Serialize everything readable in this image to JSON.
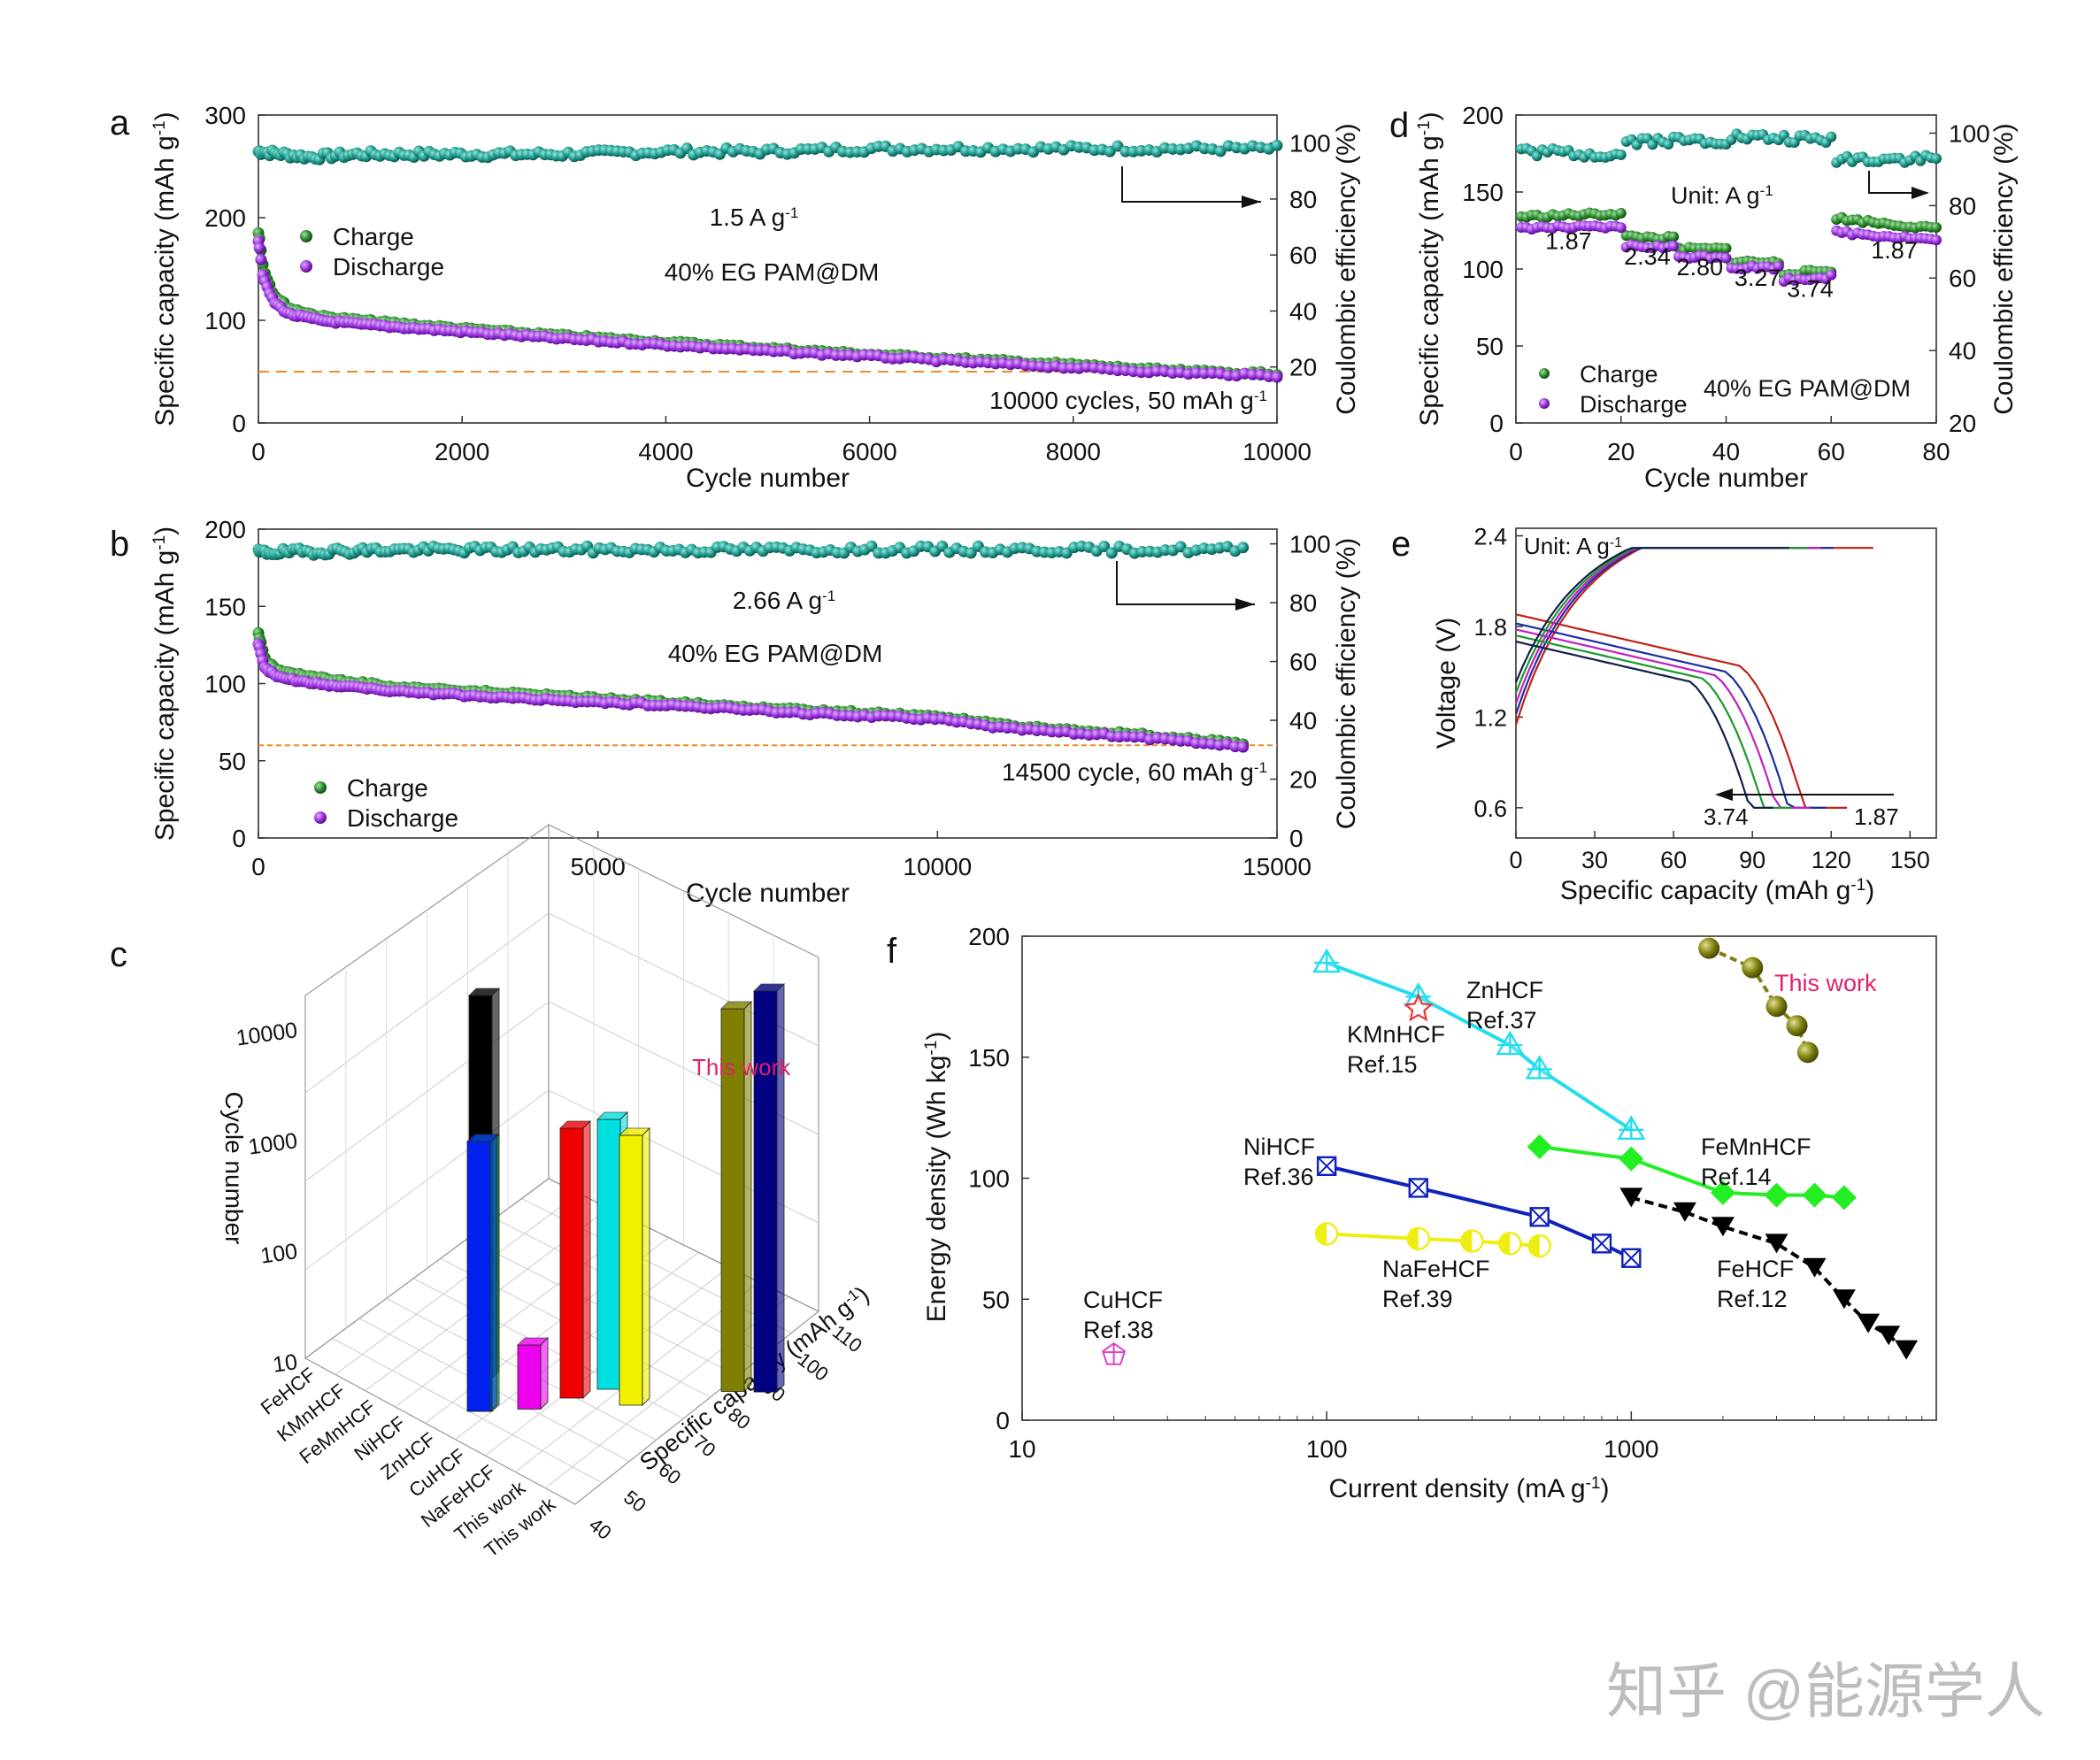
{
  "panel_letters": [
    "a",
    "b",
    "c",
    "d",
    "e",
    "f"
  ],
  "watermark": "知乎 @能源学人",
  "chart_data": [
    {
      "panel": "a",
      "type": "scatter",
      "xlabel": "Cycle number",
      "ylabel": "Specific capacity (mAh g-1)",
      "y2label": "Coulombic efficiency (%)",
      "xlim": [
        0,
        10000
      ],
      "ylim": [
        0,
        300
      ],
      "y2lim": [
        0,
        110
      ],
      "xticks": [
        0,
        2000,
        4000,
        6000,
        8000,
        10000
      ],
      "yticks": [
        0,
        100,
        200,
        300
      ],
      "y2ticks": [
        20,
        40,
        60,
        80,
        100
      ],
      "annotations": [
        "1.5 A g-1",
        "40% EG PAM@DM",
        "10000 cycles, 50 mAh g-1"
      ],
      "reference_line": 50,
      "colors": {
        "charge": "#2e8b2e",
        "discharge": "#9b30e0",
        "ce": "#1f9a8c",
        "refline": "#f08a24"
      },
      "series": [
        {
          "name": "Charge",
          "x": [
            1,
            50,
            150,
            300,
            600,
            1000,
            2000,
            3000,
            4000,
            5000,
            6000,
            7000,
            8000,
            9000,
            10000
          ],
          "values": [
            186,
            150,
            125,
            112,
            104,
            100,
            92,
            85,
            79,
            73,
            67,
            62,
            57,
            51,
            48
          ]
        },
        {
          "name": "Discharge",
          "x": [
            1,
            50,
            150,
            300,
            600,
            1000,
            2000,
            3000,
            4000,
            5000,
            6000,
            7000,
            8000,
            9000,
            10000
          ],
          "values": [
            178,
            140,
            118,
            106,
            100,
            96,
            89,
            82,
            76,
            70,
            65,
            59,
            54,
            49,
            46
          ]
        },
        {
          "axis": "y2",
          "x": [
            1,
            500,
            1000,
            2000,
            3000,
            4000,
            5000,
            6000,
            7000,
            8000,
            9000,
            10000
          ],
          "values": [
            97,
            95,
            96,
            96,
            96,
            97,
            97,
            98,
            98,
            98,
            98,
            98
          ]
        }
      ]
    },
    {
      "panel": "b",
      "type": "scatter",
      "xlabel": "Cycle number",
      "ylabel": "Specific capacity (mAh g-1)",
      "y2label": "Coulombic efficiency (%)",
      "xlim": [
        0,
        15000
      ],
      "ylim": [
        0,
        200
      ],
      "y2lim": [
        0,
        105
      ],
      "xticks": [
        0,
        5000,
        10000,
        15000
      ],
      "yticks": [
        0,
        50,
        100,
        150,
        200
      ],
      "y2ticks": [
        0,
        20,
        40,
        60,
        80,
        100
      ],
      "annotations": [
        "2.66 A g-1",
        "40% EG PAM@DM",
        "14500 cycle, 60 mAh g-1"
      ],
      "reference_line": 60,
      "colors": {
        "charge": "#2e8b2e",
        "discharge": "#9b30e0",
        "ce": "#1f9a8c",
        "refline": "#f08a24"
      },
      "series": [
        {
          "name": "Charge",
          "x": [
            1,
            100,
            300,
            1000,
            2000,
            4000,
            6000,
            8000,
            10000,
            11000,
            12000,
            13000,
            14500
          ],
          "values": [
            132,
            115,
            108,
            103,
            98,
            93,
            88,
            83,
            79,
            73,
            70,
            67,
            61
          ]
        },
        {
          "name": "Discharge",
          "x": [
            1,
            100,
            300,
            1000,
            2000,
            4000,
            6000,
            8000,
            10000,
            11000,
            12000,
            13000,
            14500
          ],
          "values": [
            125,
            110,
            104,
            99,
            95,
            90,
            86,
            81,
            77,
            71,
            68,
            65,
            59
          ]
        },
        {
          "axis": "y2",
          "x": [
            1,
            2000,
            4000,
            6000,
            8000,
            10000,
            12000,
            14500
          ],
          "values": [
            97,
            98,
            98,
            98,
            98,
            98,
            98,
            98
          ]
        }
      ]
    },
    {
      "panel": "c",
      "type": "bar",
      "zlabel": "Cycle number",
      "ylabel": "Specific capacity (mAh g-1)",
      "zscale": "log",
      "zticks": [
        "10",
        "100",
        "1000",
        "10000"
      ],
      "capacity_ticks": [
        "40",
        "50",
        "60",
        "70",
        "80",
        "90",
        "100",
        "110"
      ],
      "categories": [
        "FeHCF",
        "KMnHCF",
        "FeMnHCF",
        "NiHCF",
        "ZnHCF",
        "CuHCF",
        "NaFeHCF",
        "This work",
        "This work"
      ],
      "annotations": [
        "This work"
      ],
      "bars": [
        {
          "category": "FeHCF",
          "capacity": 60,
          "cycles": 10000,
          "color": "#000000"
        },
        {
          "category": "KMnHCF",
          "capacity": 60,
          "cycles": 1000,
          "color": "#00dd00"
        },
        {
          "category": "FeMnHCF",
          "capacity": 60,
          "cycles": 1000,
          "color": "#0022ee"
        },
        {
          "category": "NiHCF",
          "capacity": 85,
          "cycles": 1000,
          "color": "#ee0000"
        },
        {
          "category": "ZnHCF",
          "capacity": 75,
          "cycles": 15,
          "color": "#ee00ee"
        },
        {
          "category": "CuHCF",
          "capacity": 96,
          "cycles": 1000,
          "color": "#00e0e0"
        },
        {
          "category": "NaFeHCF",
          "capacity": 96,
          "cycles": 1000,
          "color": "#f0f000"
        },
        {
          "category": "This work",
          "capacity": 110,
          "cycles": 10000,
          "color": "#808000"
        },
        {
          "category": "This work",
          "capacity": 110,
          "cycles": 14500,
          "color": "#000080"
        }
      ]
    },
    {
      "panel": "d",
      "type": "scatter",
      "xlabel": "Cycle number",
      "ylabel": "Specific capacity (mAh g-1)",
      "y2label": "Coulombic efficiency (%)",
      "xlim": [
        0,
        80
      ],
      "ylim": [
        0,
        200
      ],
      "y2lim": [
        20,
        105
      ],
      "xticks": [
        0,
        20,
        40,
        60,
        80
      ],
      "yticks": [
        0,
        50,
        100,
        150,
        200
      ],
      "y2ticks": [
        20,
        40,
        60,
        80,
        100
      ],
      "annotations": [
        "Unit: A g-1",
        "40% EG PAM@DM"
      ],
      "rate_labels": [
        {
          "text": "1.87",
          "x": 10,
          "y": 113
        },
        {
          "text": "2.34",
          "x": 25,
          "y": 103
        },
        {
          "text": "2.80",
          "x": 35,
          "y": 96
        },
        {
          "text": "3.27",
          "x": 46,
          "y": 89
        },
        {
          "text": "3.74",
          "x": 56,
          "y": 82
        },
        {
          "text": "1.87",
          "x": 72,
          "y": 107
        }
      ],
      "colors": {
        "charge": "#2e8b2e",
        "discharge": "#9b30e0",
        "ce": "#1f9a8c"
      },
      "series": [
        {
          "name": "Charge",
          "segments": [
            {
              "x": [
                1,
                20
              ],
              "values": [
                134,
                136
              ]
            },
            {
              "x": [
                21,
                30
              ],
              "values": [
                121,
                120
              ]
            },
            {
              "x": [
                31,
                40
              ],
              "values": [
                113,
                113
              ]
            },
            {
              "x": [
                41,
                50
              ],
              "values": [
                105,
                104
              ]
            },
            {
              "x": [
                51,
                60
              ],
              "values": [
                97,
                99
              ]
            },
            {
              "x": [
                61,
                80
              ],
              "values": [
                133,
                126
              ]
            }
          ]
        },
        {
          "name": "Discharge",
          "segments": [
            {
              "x": [
                1,
                20
              ],
              "values": [
                127,
                127
              ]
            },
            {
              "x": [
                21,
                30
              ],
              "values": [
                115,
                114
              ]
            },
            {
              "x": [
                31,
                40
              ],
              "values": [
                108,
                108
              ]
            },
            {
              "x": [
                41,
                50
              ],
              "values": [
                101,
                101
              ]
            },
            {
              "x": [
                51,
                60
              ],
              "values": [
                93,
                95
              ]
            },
            {
              "x": [
                61,
                80
              ],
              "values": [
                124,
                119
              ]
            }
          ]
        },
        {
          "axis": "y2",
          "segments": [
            {
              "x": [
                1,
                20
              ],
              "values": [
                95,
                94
              ]
            },
            {
              "x": [
                21,
                40
              ],
              "values": [
                98,
                98
              ]
            },
            {
              "x": [
                41,
                60
              ],
              "values": [
                99,
                98
              ]
            },
            {
              "x": [
                61,
                80
              ],
              "values": [
                93,
                93
              ]
            }
          ]
        }
      ],
      "legend": [
        "Charge",
        "Discharge"
      ]
    },
    {
      "panel": "e",
      "type": "line",
      "xlabel": "Specific capacity (mAh g-1)",
      "ylabel": "Voltage (V)",
      "xlim": [
        0,
        160
      ],
      "ylim": [
        0.4,
        2.45
      ],
      "xticks": [
        0,
        30,
        60,
        90,
        120,
        150
      ],
      "yticks": [
        0.6,
        1.2,
        1.8,
        2.4
      ],
      "annotations": [
        "Unit: A g-1",
        "3.74",
        "1.87"
      ],
      "series": [
        {
          "current": 1.87,
          "color": "#c0201a",
          "charge_end": 136,
          "discharge_end": 126,
          "start_v": 1.88
        },
        {
          "current": 2.34,
          "color": "#1a2e9e",
          "charge_end": 121,
          "discharge_end": 118,
          "start_v": 1.82
        },
        {
          "current": 2.8,
          "color": "#c020c0",
          "charge_end": 116,
          "discharge_end": 112,
          "start_v": 1.78
        },
        {
          "current": 3.27,
          "color": "#1a9a2a",
          "charge_end": 111,
          "discharge_end": 105,
          "start_v": 1.74
        },
        {
          "current": 3.74,
          "color": "#10204a",
          "charge_end": 104,
          "discharge_end": 98,
          "start_v": 1.7
        }
      ]
    },
    {
      "panel": "f",
      "type": "line",
      "xlabel": "Current density (mA g-1)",
      "ylabel": "Energy density (Wh kg-1)",
      "xscale": "log",
      "xlim": [
        10,
        10000
      ],
      "ylim": [
        0,
        200
      ],
      "xticks": [
        10,
        100,
        1000
      ],
      "yticks": [
        0,
        50,
        100,
        150,
        200
      ],
      "series": [
        {
          "name": "ZnHCF",
          "ref": "Ref.37",
          "color": "#22ddee",
          "marker": "triangle-cross",
          "x": [
            100,
            200,
            400,
            500,
            1000
          ],
          "values": [
            189,
            175,
            155,
            145,
            120
          ]
        },
        {
          "name": "KMnHCF",
          "ref": "Ref.15",
          "color": "#ee3333",
          "marker": "star",
          "x": [
            200
          ],
          "values": [
            170
          ]
        },
        {
          "name": "NiHCF",
          "ref": "Ref.36",
          "color": "#1122bb",
          "marker": "square-x",
          "x": [
            100,
            200,
            500,
            800,
            1000
          ],
          "values": [
            105,
            96,
            84,
            73,
            67
          ]
        },
        {
          "name": "NaFeHCF",
          "ref": "Ref.39",
          "color": "#eeee11",
          "marker": "half-circle",
          "x": [
            100,
            200,
            300,
            400,
            500
          ],
          "values": [
            77,
            75,
            74,
            73,
            72
          ]
        },
        {
          "name": "FeMnHCF",
          "ref": "Ref.14",
          "color": "#22ee22",
          "marker": "diamond",
          "x": [
            500,
            1000,
            2000,
            3000,
            4000,
            5000
          ],
          "values": [
            113,
            108,
            94,
            93,
            93,
            92
          ]
        },
        {
          "name": "FeHCF",
          "ref": "Ref.12",
          "color": "#000000",
          "marker": "triangle-down",
          "x": [
            1000,
            1500,
            2000,
            3000,
            4000,
            5000,
            6000,
            7000,
            8000
          ],
          "values": [
            92,
            86,
            80,
            73,
            63,
            50,
            40,
            35,
            29
          ]
        },
        {
          "name": "CuHCF",
          "ref": "Ref.38",
          "color": "#dd44cc",
          "marker": "pentagon",
          "x": [
            20
          ],
          "values": [
            27
          ]
        },
        {
          "name": "This work",
          "ref": "",
          "color": "#808010",
          "marker": "sphere",
          "x": [
            1800,
            2500,
            3000,
            3500,
            3800
          ],
          "values": [
            195,
            187,
            171,
            163,
            152
          ]
        }
      ]
    }
  ]
}
